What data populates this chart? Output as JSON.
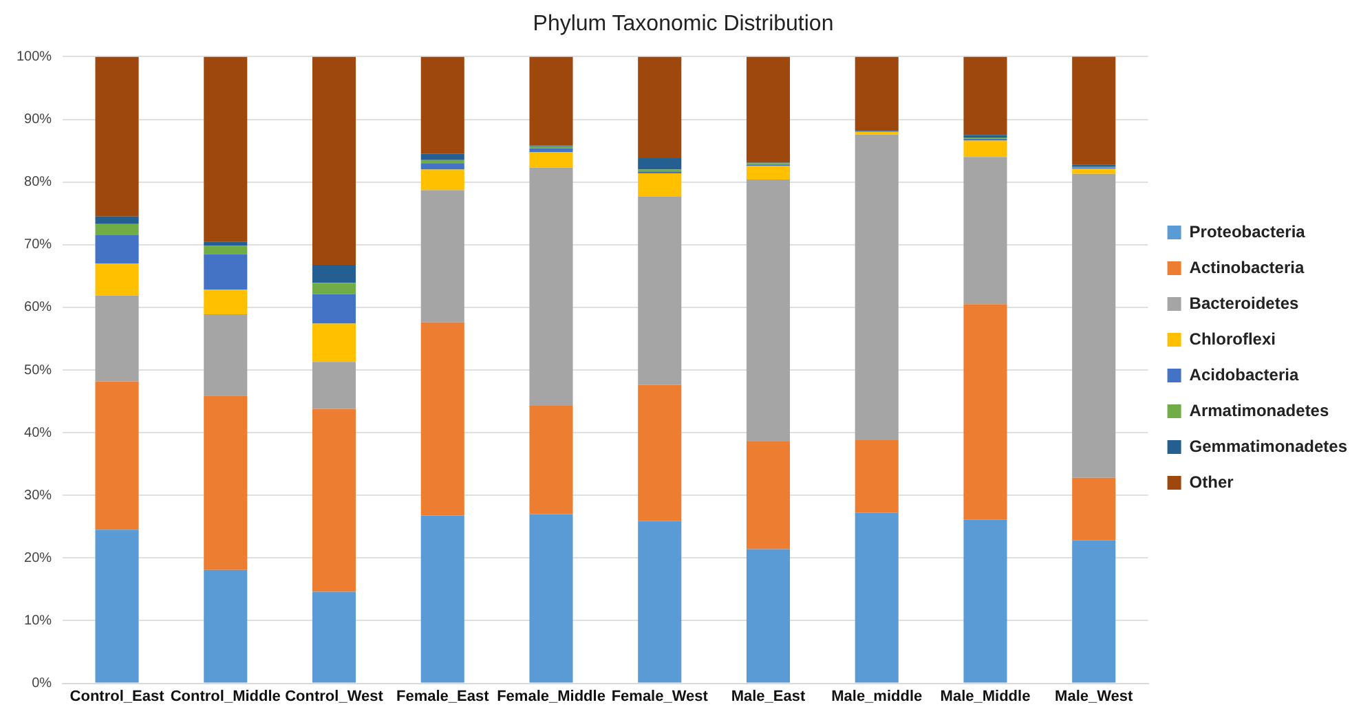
{
  "chart_data": {
    "type": "bar",
    "title": "Phylum Taxonomic Distribution",
    "stacked": true,
    "categories": [
      "Control_East",
      "Control_Middle",
      "Control_West",
      "Female_East",
      "Female_Middle",
      "Female_West",
      "Male_East",
      "Male_middle",
      "Male_Middle",
      "Male_West"
    ],
    "series": [
      {
        "name": "Proteobacteria",
        "color": "#5b9bd5",
        "values": [
          24.5,
          18.1,
          14.6,
          26.8,
          27.0,
          25.9,
          21.4,
          27.2,
          26.1,
          22.8
        ]
      },
      {
        "name": "Actinobacteria",
        "color": "#ed7d31",
        "values": [
          23.7,
          27.8,
          29.2,
          30.8,
          17.3,
          21.7,
          17.2,
          11.6,
          34.4,
          10.0
        ]
      },
      {
        "name": "Bacteroidetes",
        "color": "#a5a5a5",
        "values": [
          13.7,
          13.0,
          7.5,
          21.1,
          38.0,
          30.1,
          41.8,
          48.8,
          23.5,
          48.5
        ]
      },
      {
        "name": "Chloroflexi",
        "color": "#ffc000",
        "values": [
          5.1,
          3.9,
          6.1,
          3.3,
          2.5,
          3.7,
          2.2,
          0.4,
          2.6,
          0.8
        ]
      },
      {
        "name": "Acidobacteria",
        "color": "#4472c4",
        "values": [
          4.5,
          5.7,
          4.7,
          1.0,
          0.6,
          0.3,
          0.2,
          0.1,
          0.3,
          0.2
        ]
      },
      {
        "name": "Armatimonadetes",
        "color": "#70ad47",
        "values": [
          1.8,
          1.3,
          1.8,
          0.5,
          0.3,
          0.3,
          0.2,
          0.0,
          0.2,
          0.1
        ]
      },
      {
        "name": "Gemmatimonadetes",
        "color": "#255e91",
        "values": [
          1.2,
          0.7,
          2.9,
          1.0,
          0.1,
          1.8,
          0.1,
          0.1,
          0.4,
          0.4
        ]
      },
      {
        "name": "Other",
        "color": "#9e480e",
        "values": [
          25.5,
          29.5,
          33.2,
          15.5,
          14.2,
          16.2,
          16.9,
          11.8,
          12.5,
          17.3
        ]
      }
    ],
    "ylim": [
      0,
      100
    ],
    "yticks": [
      {
        "value": 0,
        "label": "0%"
      },
      {
        "value": 10,
        "label": "10%"
      },
      {
        "value": 20,
        "label": "20%"
      },
      {
        "value": 30,
        "label": "30%"
      },
      {
        "value": 40,
        "label": "40%"
      },
      {
        "value": 50,
        "label": "50%"
      },
      {
        "value": 60,
        "label": "60%"
      },
      {
        "value": 70,
        "label": "70%"
      },
      {
        "value": 80,
        "label": "80%"
      },
      {
        "value": 90,
        "label": "90%"
      },
      {
        "value": 100,
        "label": "100%"
      }
    ],
    "grid": "y",
    "legend": "right"
  }
}
